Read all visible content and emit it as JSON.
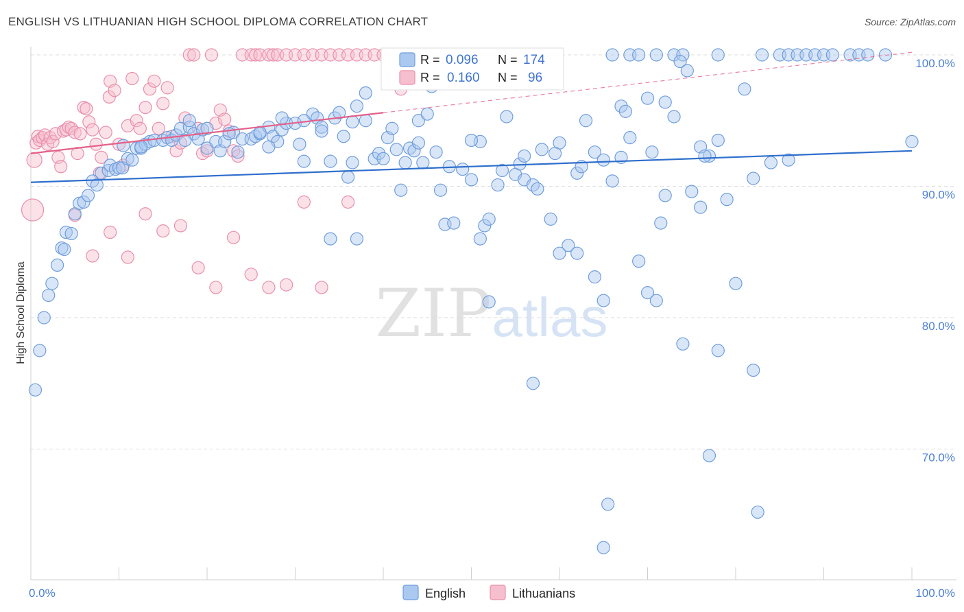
{
  "title": "ENGLISH VS LITHUANIAN HIGH SCHOOL DIPLOMA CORRELATION CHART",
  "source": "Source: ZipAtlas.com",
  "watermark": {
    "zip": "ZIP",
    "atlas": "atlas"
  },
  "colors": {
    "english_fill": "#aac8f0",
    "english_stroke": "#6f9edc",
    "english_line": "#2e6fcc",
    "lith_fill": "#f6bfcf",
    "lith_stroke": "#ea8fab",
    "lith_line": "#e4608a",
    "tick_text": "#4a7fd4",
    "grid": "#dcdcdc"
  },
  "chart_data": {
    "type": "scatter",
    "title": "ENGLISH VS LITHUANIAN HIGH SCHOOL DIPLOMA CORRELATION CHART",
    "ylabel": "High School Diploma",
    "xlabel": "",
    "xlim": [
      0,
      100
    ],
    "ylim": [
      60.3,
      101.5
    ],
    "x_tick_labels": [
      {
        "value": 0,
        "label": "0.0%"
      },
      {
        "value": 100,
        "label": "100.0%"
      }
    ],
    "y_tick_labels": [
      {
        "value": 100,
        "label": "100.0%"
      },
      {
        "value": 90,
        "label": "90.0%"
      },
      {
        "value": 80,
        "label": "80.0%"
      },
      {
        "value": 70,
        "label": "70.0%"
      }
    ],
    "legend_stats": [
      {
        "series": "English",
        "r_label": "R =",
        "r": "0.096",
        "n_label": "N =",
        "n": "174"
      },
      {
        "series": "Lithuanians",
        "r_label": "R =",
        "r": "0.160",
        "n_label": "N =",
        "n": "96"
      }
    ],
    "series": [
      {
        "name": "English",
        "trend": {
          "x0": 0,
          "y0": 90.3,
          "x1": 100,
          "y1": 92.7
        },
        "points": [
          [
            0.5,
            74.5
          ],
          [
            1,
            77.5
          ],
          [
            1.5,
            80
          ],
          [
            2,
            81.7
          ],
          [
            2.4,
            82.6
          ],
          [
            3,
            84
          ],
          [
            3.5,
            85.3
          ],
          [
            3.8,
            85.2
          ],
          [
            4,
            86.5
          ],
          [
            4.6,
            86.4
          ],
          [
            5,
            87.9
          ],
          [
            5.5,
            88.7
          ],
          [
            6,
            88.8
          ],
          [
            6.5,
            89.3
          ],
          [
            7,
            90.4
          ],
          [
            7.5,
            90.1
          ],
          [
            8,
            91
          ],
          [
            8.8,
            91.2
          ],
          [
            9,
            91.6
          ],
          [
            9.6,
            91.3
          ],
          [
            10,
            91.4
          ],
          [
            10.4,
            91.4
          ],
          [
            11,
            92.1
          ],
          [
            11.5,
            92
          ],
          [
            12,
            92.9
          ],
          [
            12.5,
            92.9
          ],
          [
            13,
            93.2
          ],
          [
            13.5,
            93.4
          ],
          [
            14,
            93.5
          ],
          [
            15,
            93.5
          ],
          [
            15.5,
            93.7
          ],
          [
            16,
            93.5
          ],
          [
            16.5,
            93.9
          ],
          [
            17,
            94.4
          ],
          [
            18,
            94.5
          ],
          [
            18.5,
            94
          ],
          [
            19,
            93.6
          ],
          [
            19.5,
            94.3
          ],
          [
            20,
            92.9
          ],
          [
            21,
            93.4
          ],
          [
            21.5,
            92.7
          ],
          [
            22,
            93.4
          ],
          [
            23,
            94.1
          ],
          [
            23.5,
            92.6
          ],
          [
            24,
            93.6
          ],
          [
            25,
            93.6
          ],
          [
            25.5,
            93.8
          ],
          [
            26,
            94
          ],
          [
            27,
            94.5
          ],
          [
            27.5,
            93.8
          ],
          [
            28,
            93.4
          ],
          [
            28.5,
            94.3
          ],
          [
            29,
            94.8
          ],
          [
            30,
            94.8
          ],
          [
            30.5,
            93.2
          ],
          [
            31,
            91.9
          ],
          [
            32,
            95.5
          ],
          [
            32.5,
            95.2
          ],
          [
            33,
            94.5
          ],
          [
            34,
            91.9
          ],
          [
            34.5,
            95.2
          ],
          [
            35,
            95.6
          ],
          [
            35.5,
            93.8
          ],
          [
            36,
            90.7
          ],
          [
            36.5,
            91.8
          ],
          [
            37,
            96.1
          ],
          [
            38,
            95
          ],
          [
            39,
            92.1
          ],
          [
            39.5,
            92.5
          ],
          [
            40,
            92.1
          ],
          [
            40.5,
            93.7
          ],
          [
            41,
            94.4
          ],
          [
            42,
            89.7
          ],
          [
            42.5,
            91.8
          ],
          [
            43,
            92.9
          ],
          [
            43.5,
            92.7
          ],
          [
            44,
            95
          ],
          [
            44.5,
            91.8
          ],
          [
            45,
            95.5
          ],
          [
            46,
            92.6
          ],
          [
            46.5,
            89.7
          ],
          [
            47,
            87.1
          ],
          [
            48,
            87.2
          ],
          [
            49,
            91.3
          ],
          [
            50,
            90.5
          ],
          [
            51,
            93.4
          ],
          [
            51.5,
            87
          ],
          [
            52,
            87.5
          ],
          [
            53,
            90.1
          ],
          [
            54,
            95.3
          ],
          [
            55,
            90.9
          ],
          [
            55.5,
            91.7
          ],
          [
            56,
            90.5
          ],
          [
            57,
            90.1
          ],
          [
            58,
            92.8
          ],
          [
            59,
            87.5
          ],
          [
            60,
            93.3
          ],
          [
            61,
            85.5
          ],
          [
            62,
            91
          ],
          [
            63,
            95
          ],
          [
            64,
            92.6
          ],
          [
            65,
            92
          ],
          [
            66,
            90.4
          ],
          [
            67,
            96.1
          ],
          [
            67.5,
            95.7
          ],
          [
            68,
            93.7
          ],
          [
            70,
            96.7
          ],
          [
            72,
            96.4
          ],
          [
            73,
            95.3
          ],
          [
            75,
            89.6
          ],
          [
            76,
            93
          ],
          [
            77,
            92.3
          ],
          [
            78,
            93.5
          ],
          [
            79,
            89
          ],
          [
            81,
            97.4
          ],
          [
            82,
            90.6
          ],
          [
            60,
            84.9
          ],
          [
            62,
            84.9
          ],
          [
            34,
            86
          ],
          [
            37,
            86
          ],
          [
            51,
            86
          ],
          [
            69,
            84.3
          ],
          [
            70,
            81.9
          ],
          [
            71,
            81.3
          ],
          [
            80,
            82.6
          ],
          [
            64,
            83.1
          ],
          [
            65,
            81.3
          ],
          [
            52,
            81.2
          ],
          [
            78,
            77.5
          ],
          [
            82,
            76
          ],
          [
            74,
            78
          ],
          [
            57,
            75
          ],
          [
            77,
            69.5
          ],
          [
            65.5,
            65.8
          ],
          [
            82.5,
            65.2
          ],
          [
            65,
            62.5
          ],
          [
            66,
            100
          ],
          [
            68,
            100
          ],
          [
            69,
            100
          ],
          [
            71,
            100
          ],
          [
            73,
            100
          ],
          [
            74,
            100
          ],
          [
            78,
            100
          ],
          [
            83,
            100
          ],
          [
            85,
            100
          ],
          [
            86,
            100
          ],
          [
            87,
            100
          ],
          [
            88,
            100
          ],
          [
            89,
            100
          ],
          [
            90,
            100
          ],
          [
            91,
            100
          ],
          [
            93,
            100
          ],
          [
            94,
            100
          ],
          [
            95,
            100
          ],
          [
            97,
            100
          ],
          [
            55,
            97.8
          ],
          [
            73.7,
            99.5
          ],
          [
            74.5,
            98.8
          ],
          [
            100,
            93.4
          ],
          [
            38,
            97.1
          ],
          [
            72,
            89.3
          ],
          [
            20,
            94.4
          ],
          [
            26,
            94.1
          ],
          [
            31,
            95
          ],
          [
            50,
            93.5
          ],
          [
            56,
            92.3
          ],
          [
            70.5,
            92.6
          ],
          [
            12.5,
            93
          ],
          [
            17.5,
            93.5
          ],
          [
            22.5,
            94
          ],
          [
            27,
            93
          ],
          [
            33,
            94.2
          ],
          [
            41.5,
            92.8
          ],
          [
            47.5,
            91.5
          ],
          [
            53.5,
            91.2
          ],
          [
            59.5,
            92.5
          ],
          [
            67,
            92.2
          ],
          [
            71.5,
            87.2
          ],
          [
            76.5,
            92.3
          ],
          [
            84,
            91.8
          ],
          [
            86,
            92
          ],
          [
            44,
            93.3
          ],
          [
            36.5,
            94.9
          ],
          [
            18,
            95
          ],
          [
            10.5,
            93.1
          ],
          [
            57.5,
            89.8
          ],
          [
            62.5,
            91.5
          ],
          [
            76,
            88.4
          ],
          [
            28.5,
            95.2
          ],
          [
            45.5,
            97.6
          ]
        ]
      },
      {
        "name": "Lithuanians",
        "trend": {
          "x0": 0,
          "y0": 92.5,
          "x1": 40,
          "y1": 95.6
        },
        "dashed_extension": {
          "x0": 40,
          "y0": 95.6,
          "x1": 100,
          "y1": 100.2
        },
        "points": [
          [
            0.2,
            88.2
          ],
          [
            0.4,
            92
          ],
          [
            0.6,
            93.3
          ],
          [
            0.8,
            93.8
          ],
          [
            1,
            93.5
          ],
          [
            1.3,
            93.7
          ],
          [
            1.6,
            93.9
          ],
          [
            1.9,
            93.2
          ],
          [
            2.2,
            93.7
          ],
          [
            2.5,
            93.4
          ],
          [
            2.8,
            94
          ],
          [
            3.1,
            92.2
          ],
          [
            3.4,
            91.5
          ],
          [
            3.7,
            94.2
          ],
          [
            4,
            94.3
          ],
          [
            4.3,
            94.5
          ],
          [
            4.6,
            94.4
          ],
          [
            5,
            94.1
          ],
          [
            5.3,
            92.5
          ],
          [
            5.6,
            94
          ],
          [
            6,
            96
          ],
          [
            6.3,
            95.9
          ],
          [
            6.6,
            94.9
          ],
          [
            7,
            94.3
          ],
          [
            7.4,
            93.2
          ],
          [
            7.8,
            91
          ],
          [
            8,
            92.2
          ],
          [
            8.5,
            94.1
          ],
          [
            8.9,
            96.8
          ],
          [
            9,
            98
          ],
          [
            9.5,
            97.3
          ],
          [
            10,
            93.2
          ],
          [
            10.5,
            91.6
          ],
          [
            11,
            94.6
          ],
          [
            11.5,
            98.2
          ],
          [
            12,
            95
          ],
          [
            12.4,
            94.4
          ],
          [
            13,
            96
          ],
          [
            13.5,
            97.4
          ],
          [
            14,
            98
          ],
          [
            14.5,
            94.4
          ],
          [
            15,
            96.3
          ],
          [
            15.5,
            97.5
          ],
          [
            16,
            93.8
          ],
          [
            16.5,
            92.7
          ],
          [
            17,
            93.3
          ],
          [
            17.5,
            95.2
          ],
          [
            18,
            100
          ],
          [
            18.5,
            100
          ],
          [
            19,
            94.4
          ],
          [
            19.5,
            92.5
          ],
          [
            20,
            92.7
          ],
          [
            20.5,
            100
          ],
          [
            21,
            94.8
          ],
          [
            21.5,
            95.8
          ],
          [
            22,
            95.1
          ],
          [
            22.5,
            94.2
          ],
          [
            23,
            92.7
          ],
          [
            23.5,
            92.3
          ],
          [
            24,
            100
          ],
          [
            25,
            100
          ],
          [
            25.5,
            100
          ],
          [
            26,
            100
          ],
          [
            27,
            100
          ],
          [
            27.5,
            100
          ],
          [
            28,
            100
          ],
          [
            29,
            100
          ],
          [
            30,
            100
          ],
          [
            31,
            100
          ],
          [
            32,
            100
          ],
          [
            33,
            100
          ],
          [
            34,
            100
          ],
          [
            35,
            100
          ],
          [
            36,
            100
          ],
          [
            37,
            100
          ],
          [
            38,
            100
          ],
          [
            39,
            100
          ],
          [
            40,
            100
          ],
          [
            41,
            100
          ],
          [
            42,
            97.4
          ],
          [
            5,
            87.8
          ],
          [
            7,
            84.7
          ],
          [
            9,
            86.5
          ],
          [
            11,
            84.6
          ],
          [
            13,
            87.9
          ],
          [
            15,
            86.6
          ],
          [
            17,
            87
          ],
          [
            19,
            83.8
          ],
          [
            21,
            82.3
          ],
          [
            23,
            86.1
          ],
          [
            25,
            83.3
          ],
          [
            27,
            82.3
          ],
          [
            29,
            82.5
          ],
          [
            31,
            88.8
          ],
          [
            33,
            82.3
          ],
          [
            36,
            88.8
          ]
        ]
      }
    ]
  },
  "legend_bottom": [
    {
      "series": "English",
      "label": "English"
    },
    {
      "series": "Lithuanians",
      "label": "Lithuanians"
    }
  ]
}
